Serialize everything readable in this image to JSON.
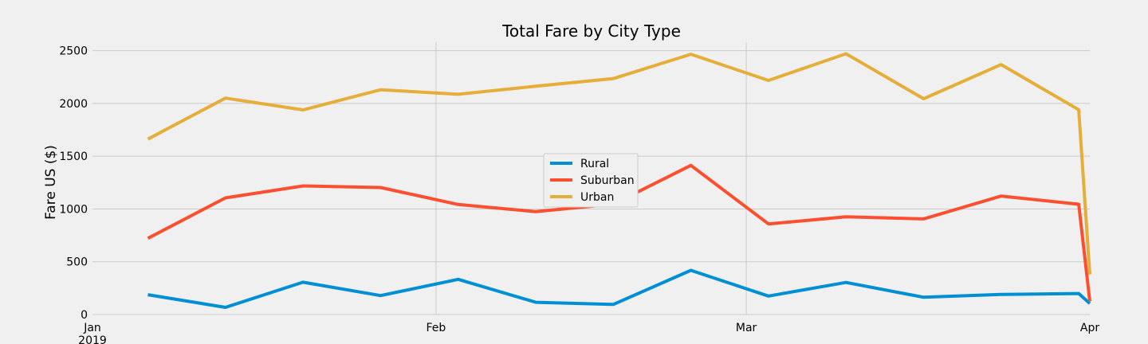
{
  "chart_data": {
    "type": "line",
    "title": "Total Fare by City Type",
    "xlabel": "",
    "ylabel": "Fare US ($)",
    "x": [
      "2019-01-06",
      "2019-01-13",
      "2019-01-20",
      "2019-01-27",
      "2019-02-03",
      "2019-02-10",
      "2019-02-17",
      "2019-02-24",
      "2019-03-03",
      "2019-03-10",
      "2019-03-17",
      "2019-03-24",
      "2019-03-31",
      "2019-04-07"
    ],
    "x_ticks": [
      {
        "date": "2019-01-01",
        "label": "Jan",
        "sublabel": "2019"
      },
      {
        "date": "2019-02-01",
        "label": "Feb",
        "sublabel": ""
      },
      {
        "date": "2019-03-01",
        "label": "Mar",
        "sublabel": ""
      },
      {
        "date": "2019-04-01",
        "label": "Apr",
        "sublabel": ""
      }
    ],
    "xlim": [
      "2019-01-01",
      "2019-04-01"
    ],
    "ylim": [
      0,
      2580
    ],
    "y_ticks": [
      0,
      500,
      1000,
      1500,
      2000,
      2500
    ],
    "grid": true,
    "legend_position": "center",
    "series": [
      {
        "name": "Rural",
        "color": "#008fd5",
        "values": [
          187.92,
          67.65,
          306.0,
          179.69,
          333.08,
          115.8,
          95.82,
          419.06,
          175.14,
          303.94,
          163.39,
          189.76,
          199.42,
          105.0
        ]
      },
      {
        "name": "Suburban",
        "color": "#fc4f30",
        "values": [
          721.6,
          1105.13,
          1218.2,
          1203.28,
          1042.79,
          974.34,
          1045.5,
          1412.74,
          858.46,
          925.27,
          906.2,
          1122.2,
          1045.06,
          125.0
        ]
      },
      {
        "name": "Urban",
        "color": "#e5ae38",
        "values": [
          1661.68,
          2050.43,
          1939.02,
          2129.51,
          2086.94,
          2162.64,
          2235.07,
          2466.29,
          2218.2,
          2470.93,
          2044.42,
          2368.37,
          1939.97,
          380.0
        ]
      }
    ]
  }
}
